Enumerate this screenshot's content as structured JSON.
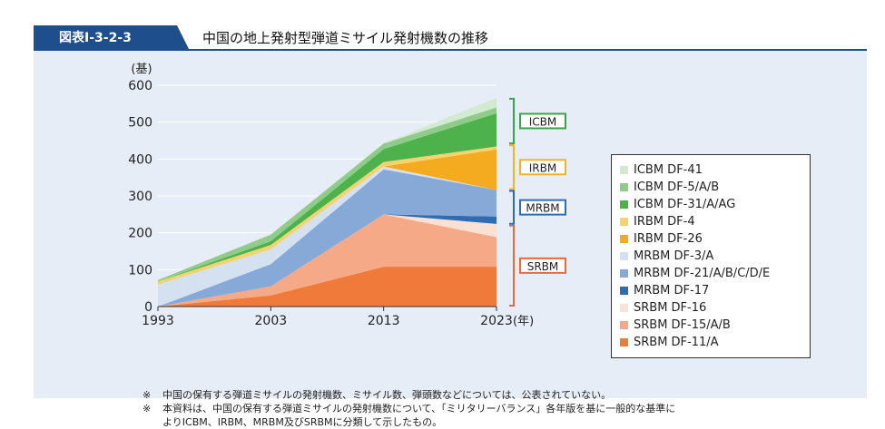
{
  "header": {
    "figure_no": "図表Ⅰ-3-2-3",
    "title": "中国の地上発射型弾道ミサイル発射機数の推移"
  },
  "chart_data": {
    "type": "area",
    "stacked": true,
    "x": [
      1993,
      2003,
      2013,
      2023
    ],
    "x_tick_labels": [
      "1993",
      "2003",
      "2013",
      "2023"
    ],
    "x_unit": "(年)",
    "y_unit": "(基)",
    "ylim": [
      0,
      600
    ],
    "y_ticks": [
      0,
      100,
      200,
      300,
      400,
      500,
      600
    ],
    "series": [
      {
        "name": "SRBM DF-11/A",
        "color": "#ef7a3a",
        "values": [
          0,
          30,
          108,
          108
        ]
      },
      {
        "name": "SRBM DF-15/A/B",
        "color": "#f5a986",
        "values": [
          0,
          25,
          142,
          80
        ]
      },
      {
        "name": "SRBM DF-16",
        "color": "#fbe0d4",
        "values": [
          0,
          0,
          0,
          36
        ]
      },
      {
        "name": "MRBM DF-17",
        "color": "#2f6db3",
        "values": [
          0,
          0,
          0,
          20
        ]
      },
      {
        "name": "MRBM DF-21/A/B/C/D/E",
        "color": "#86a9d8",
        "values": [
          0,
          60,
          122,
          72
        ]
      },
      {
        "name": "MRBM DF-3/A",
        "color": "#d4e1f0",
        "values": [
          60,
          40,
          8,
          0
        ]
      },
      {
        "name": "IRBM DF-26",
        "color": "#f5ab20",
        "values": [
          0,
          0,
          0,
          110
        ]
      },
      {
        "name": "IRBM DF-4",
        "color": "#f7d36f",
        "values": [
          8,
          12,
          12,
          8
        ]
      },
      {
        "name": "ICBM DF-31/A/AG",
        "color": "#4db24c",
        "values": [
          0,
          10,
          35,
          90
        ]
      },
      {
        "name": "ICBM DF-5/A/B",
        "color": "#8fcc8a",
        "values": [
          4,
          18,
          15,
          16
        ]
      },
      {
        "name": "ICBM DF-41",
        "color": "#d2ead0",
        "values": [
          0,
          0,
          0,
          26
        ]
      }
    ],
    "legend_order": [
      "ICBM DF-41",
      "ICBM DF-5/A/B",
      "ICBM DF-31/A/AG",
      "IRBM DF-4",
      "IRBM DF-26",
      "MRBM DF-3/A",
      "MRBM DF-21/A/B/C/D/E",
      "MRBM DF-17",
      "SRBM DF-16",
      "SRBM DF-15/A/B",
      "SRBM DF-11/A"
    ],
    "groups": [
      {
        "label": "ICBM",
        "color": "#3aa54a",
        "from": 440,
        "to": 566
      },
      {
        "label": "IRBM",
        "color": "#f0b429",
        "from": 316,
        "to": 440
      },
      {
        "label": "MRBM",
        "color": "#2f6db3",
        "from": 222,
        "to": 316
      },
      {
        "label": "SRBM",
        "color": "#e8693a",
        "from": 0,
        "to": 222
      }
    ]
  },
  "notes": [
    {
      "mark": "※",
      "text": "中国の保有する弾道ミサイルの発射機数、ミサイル数、弾頭数などについては、公表されていない。"
    },
    {
      "mark": "※",
      "text": "本資料は、中国の保有する弾道ミサイルの発射機数について、「ミリタリーバランス」各年版を基に一般的な基準に\nよりICBM、IRBM、MRBM及びSRBMに分類して示したもの。"
    }
  ]
}
